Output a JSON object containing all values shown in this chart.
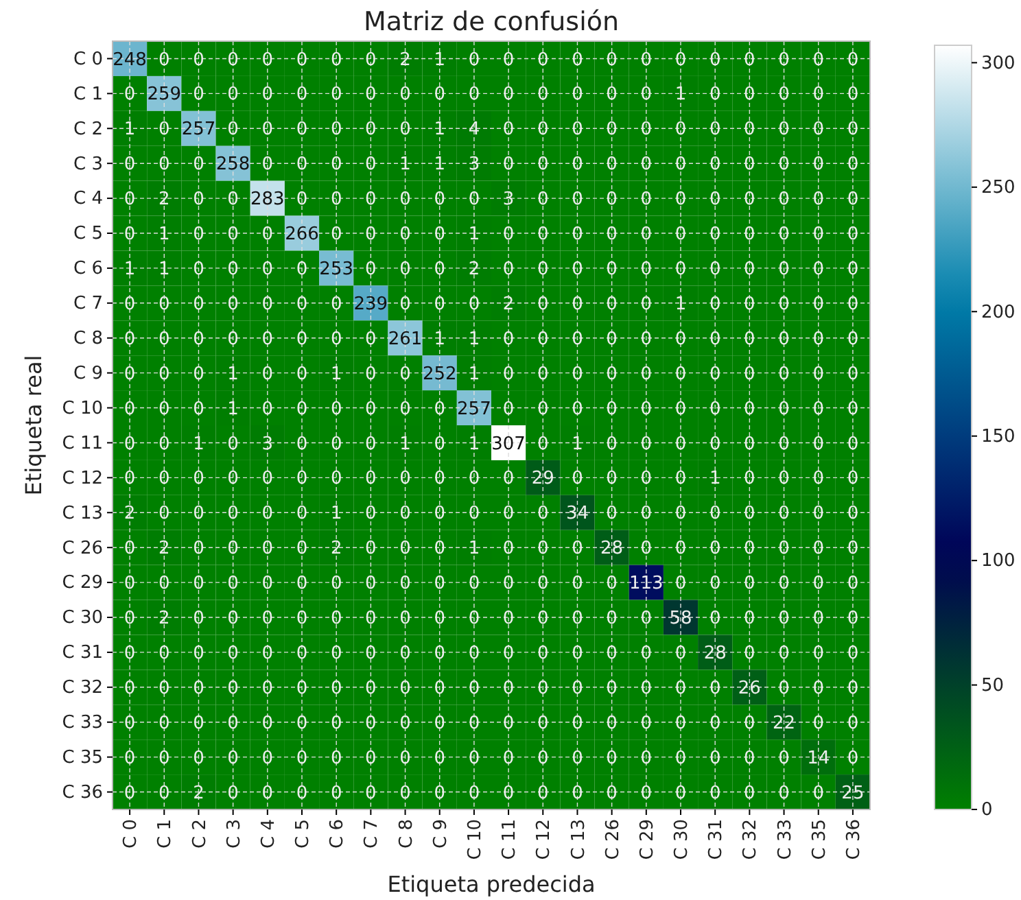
{
  "chart_data": {
    "type": "heatmap",
    "title": "Matriz de confusión",
    "xlabel": "Etiqueta predecida",
    "ylabel": "Etiqueta real",
    "categories": [
      "C 0",
      "C 1",
      "C 2",
      "C 3",
      "C 4",
      "C 5",
      "C 6",
      "C 7",
      "C 8",
      "C 9",
      "C 10",
      "C 11",
      "C 12",
      "C 13",
      "C 26",
      "C 29",
      "C 30",
      "C 31",
      "C 32",
      "C 33",
      "C 35",
      "C 36"
    ],
    "y_categories": [
      "C 0",
      "C 1",
      "C 2",
      "C 3",
      "C 4",
      "C 5",
      "C 6",
      "C 7",
      "C 8",
      "C 9",
      "C 10",
      "C 11",
      "C 12",
      "C 13",
      "C 26",
      "C 29",
      "C 30",
      "C 31",
      "C 32",
      "C 33",
      "C 35",
      "C 36"
    ],
    "cells": [
      [
        248,
        0,
        0,
        0,
        0,
        0,
        0,
        0,
        2,
        1,
        0,
        0,
        0,
        0,
        0,
        0,
        0,
        0,
        0,
        0,
        0,
        0
      ],
      [
        0,
        259,
        0,
        0,
        0,
        0,
        0,
        0,
        0,
        0,
        0,
        0,
        0,
        0,
        0,
        0,
        1,
        0,
        0,
        0,
        0,
        0
      ],
      [
        1,
        0,
        257,
        0,
        0,
        0,
        0,
        0,
        0,
        1,
        4,
        0,
        0,
        0,
        0,
        0,
        0,
        0,
        0,
        0,
        0,
        0
      ],
      [
        0,
        0,
        0,
        258,
        0,
        0,
        0,
        0,
        1,
        1,
        3,
        0,
        0,
        0,
        0,
        0,
        0,
        0,
        0,
        0,
        0,
        0
      ],
      [
        0,
        2,
        0,
        0,
        283,
        0,
        0,
        0,
        0,
        0,
        0,
        3,
        0,
        0,
        0,
        0,
        0,
        0,
        0,
        0,
        0,
        0
      ],
      [
        0,
        1,
        0,
        0,
        0,
        266,
        0,
        0,
        0,
        0,
        1,
        0,
        0,
        0,
        0,
        0,
        0,
        0,
        0,
        0,
        0,
        0
      ],
      [
        1,
        1,
        0,
        0,
        0,
        0,
        253,
        0,
        0,
        0,
        2,
        0,
        0,
        0,
        0,
        0,
        0,
        0,
        0,
        0,
        0,
        0
      ],
      [
        0,
        0,
        0,
        0,
        0,
        0,
        0,
        239,
        0,
        0,
        0,
        2,
        0,
        0,
        0,
        0,
        1,
        0,
        0,
        0,
        0,
        0
      ],
      [
        0,
        0,
        0,
        0,
        0,
        0,
        0,
        0,
        261,
        1,
        1,
        0,
        0,
        0,
        0,
        0,
        0,
        0,
        0,
        0,
        0,
        0
      ],
      [
        0,
        0,
        0,
        1,
        0,
        0,
        1,
        0,
        0,
        252,
        1,
        0,
        0,
        0,
        0,
        0,
        0,
        0,
        0,
        0,
        0,
        0
      ],
      [
        0,
        0,
        0,
        1,
        0,
        0,
        0,
        0,
        0,
        0,
        257,
        0,
        0,
        0,
        0,
        0,
        0,
        0,
        0,
        0,
        0,
        0
      ],
      [
        0,
        0,
        1,
        0,
        3,
        0,
        0,
        0,
        1,
        0,
        1,
        307,
        0,
        1,
        0,
        0,
        0,
        0,
        0,
        0,
        0,
        0
      ],
      [
        0,
        0,
        0,
        0,
        0,
        0,
        0,
        0,
        0,
        0,
        0,
        0,
        29,
        0,
        0,
        0,
        0,
        1,
        0,
        0,
        0,
        0
      ],
      [
        2,
        0,
        0,
        0,
        0,
        0,
        1,
        0,
        0,
        0,
        0,
        0,
        0,
        34,
        0,
        0,
        0,
        0,
        0,
        0,
        0,
        0
      ],
      [
        0,
        2,
        0,
        0,
        0,
        0,
        2,
        0,
        0,
        0,
        1,
        0,
        0,
        0,
        28,
        0,
        0,
        0,
        0,
        0,
        0,
        0
      ],
      [
        0,
        0,
        0,
        0,
        0,
        0,
        0,
        0,
        0,
        0,
        0,
        0,
        0,
        0,
        0,
        113,
        0,
        0,
        0,
        0,
        0,
        0
      ],
      [
        0,
        2,
        0,
        0,
        0,
        0,
        0,
        0,
        0,
        0,
        0,
        0,
        0,
        0,
        0,
        0,
        58,
        0,
        0,
        0,
        0,
        0
      ],
      [
        0,
        0,
        0,
        0,
        0,
        0,
        0,
        0,
        0,
        0,
        0,
        0,
        0,
        0,
        0,
        0,
        0,
        28,
        0,
        0,
        0,
        0
      ],
      [
        0,
        0,
        0,
        0,
        0,
        0,
        0,
        0,
        0,
        0,
        0,
        0,
        0,
        0,
        0,
        0,
        0,
        0,
        26,
        0,
        0,
        0
      ],
      [
        0,
        0,
        0,
        0,
        0,
        0,
        0,
        0,
        0,
        0,
        0,
        0,
        0,
        0,
        0,
        0,
        0,
        0,
        0,
        22,
        0,
        0
      ],
      [
        0,
        0,
        0,
        0,
        0,
        0,
        0,
        0,
        0,
        0,
        0,
        0,
        0,
        0,
        0,
        0,
        0,
        0,
        0,
        0,
        14,
        0
      ],
      [
        0,
        0,
        2,
        0,
        0,
        0,
        0,
        0,
        0,
        0,
        0,
        0,
        0,
        0,
        0,
        0,
        0,
        0,
        0,
        0,
        0,
        25
      ]
    ],
    "data_labels": true,
    "clim": [
      0,
      307
    ],
    "cticks": [
      0,
      50,
      100,
      150,
      200,
      250,
      300
    ],
    "grid": true
  }
}
